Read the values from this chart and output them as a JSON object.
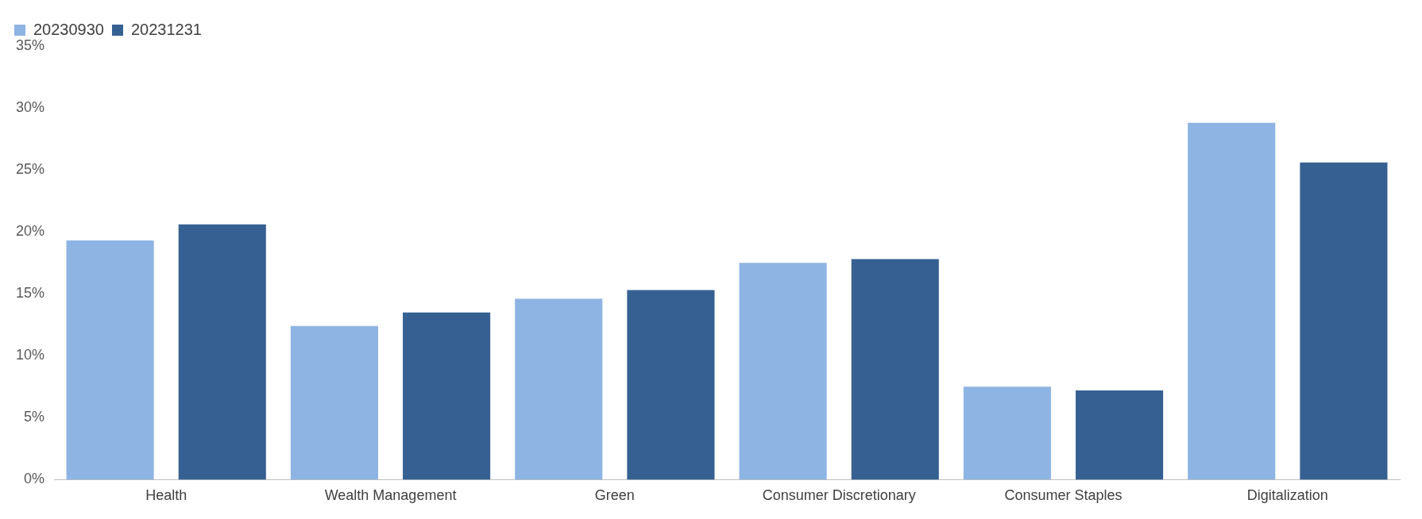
{
  "chart_data": {
    "type": "bar",
    "categories": [
      "Health",
      "Wealth Management",
      "Green",
      "Consumer Discretionary",
      "Consumer Staples",
      "Digitalization"
    ],
    "series": [
      {
        "name": "20230930",
        "color": "#8eb4e3",
        "values": [
          19.3,
          12.4,
          14.6,
          17.5,
          7.5,
          28.8
        ]
      },
      {
        "name": "20231231",
        "color": "#366092",
        "values": [
          20.6,
          13.5,
          15.3,
          17.8,
          7.2,
          25.6
        ]
      }
    ],
    "ylim": [
      0,
      35
    ],
    "yticks": [
      {
        "value": 0,
        "label": "0%"
      },
      {
        "value": 5,
        "label": "5%"
      },
      {
        "value": 10,
        "label": "10%"
      },
      {
        "value": 15,
        "label": "15%"
      },
      {
        "value": 20,
        "label": "20%"
      },
      {
        "value": 25,
        "label": "25%"
      },
      {
        "value": 30,
        "label": "30%"
      },
      {
        "value": 35,
        "label": "35%"
      }
    ],
    "grid": false,
    "legend": "top left"
  }
}
